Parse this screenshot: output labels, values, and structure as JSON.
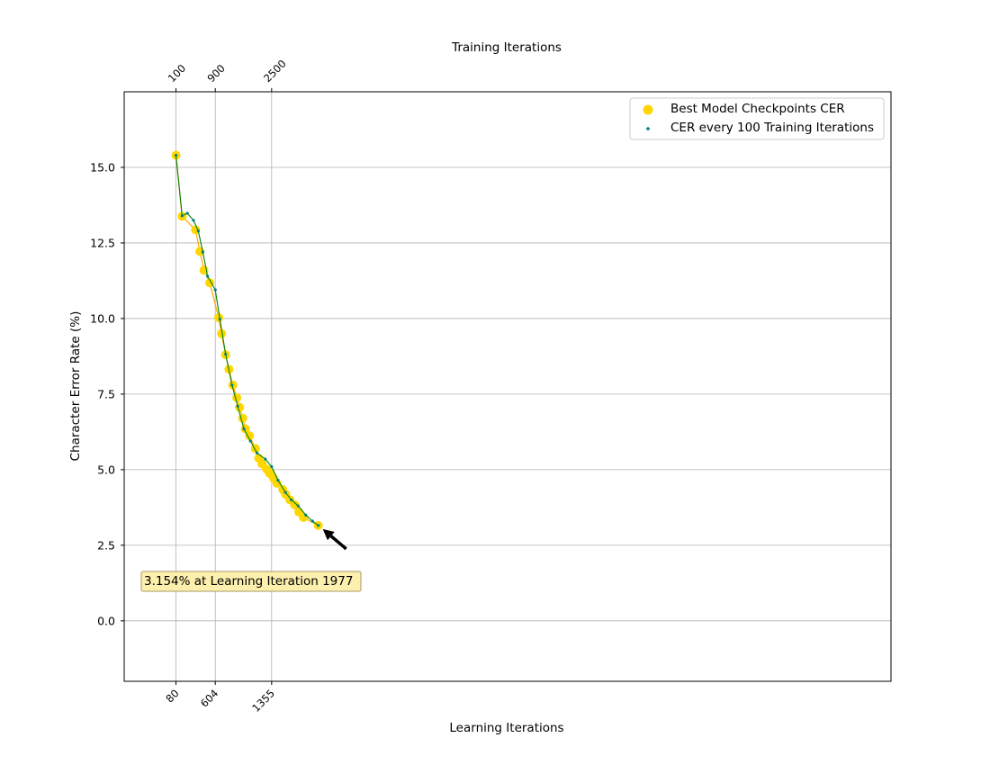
{
  "chart_data": {
    "type": "scatter",
    "xlabel": "Learning Iterations",
    "ylabel": "Character Error Rate (%)",
    "top_xlabel": "Training Iterations",
    "ylim": [
      -2.0,
      17.5
    ],
    "xlim": [
      -610,
      9610
    ],
    "grid": true,
    "legend_position": "top-right",
    "y_ticks": [
      0.0,
      2.5,
      5.0,
      7.5,
      10.0,
      12.5,
      15.0
    ],
    "y_tick_labels": [
      "0.0",
      "2.5",
      "5.0",
      "7.5",
      "10.0",
      "12.5",
      "15.0"
    ],
    "bottom_ticks": [
      80,
      604,
      1355
    ],
    "bottom_tick_labels": [
      "80",
      "604",
      "1355"
    ],
    "top_ticks": [
      80,
      604,
      1355
    ],
    "top_tick_labels": [
      "100",
      "900",
      "2500"
    ],
    "colors": {
      "best": "#ffd700",
      "best_line": "#ffa500",
      "every100": "#008080",
      "every100_line": "#008000"
    },
    "series": [
      {
        "name": "Best Model Checkpoints CER",
        "x": [
          80,
          162,
          342,
          398,
          453,
          530,
          649,
          687,
          742,
          786,
          838,
          891,
          928,
          970,
          1005,
          1060,
          1138,
          1183,
          1225,
          1287,
          1328,
          1380,
          1425,
          1504,
          1544,
          1600,
          1661,
          1717,
          1779,
          1977
        ],
        "y": [
          15.4,
          13.38,
          12.93,
          12.22,
          11.6,
          11.18,
          10.03,
          9.5,
          8.8,
          8.32,
          7.8,
          7.38,
          7.06,
          6.7,
          6.35,
          6.12,
          5.7,
          5.38,
          5.2,
          5.02,
          4.88,
          4.72,
          4.55,
          4.34,
          4.18,
          4.0,
          3.84,
          3.6,
          3.42,
          3.154
        ]
      },
      {
        "name": "CER every 100 Training Iterations",
        "x": [
          80,
          162,
          232,
          313,
          377,
          438,
          501,
          604,
          665,
          742,
          827,
          903,
          986,
          1072,
          1160,
          1271,
          1355,
          1440,
          1539,
          1618,
          1710,
          1810,
          1900,
          1977
        ],
        "y": [
          15.4,
          13.4,
          13.48,
          13.25,
          12.9,
          12.2,
          11.4,
          10.95,
          9.98,
          8.82,
          7.8,
          7.1,
          6.35,
          5.95,
          5.55,
          5.35,
          5.1,
          4.65,
          4.25,
          4.0,
          3.8,
          3.5,
          3.3,
          3.154
        ]
      }
    ],
    "annotation": {
      "text": "3.154% at Learning Iteration 1977",
      "x": 1977,
      "y": 3.154
    }
  }
}
